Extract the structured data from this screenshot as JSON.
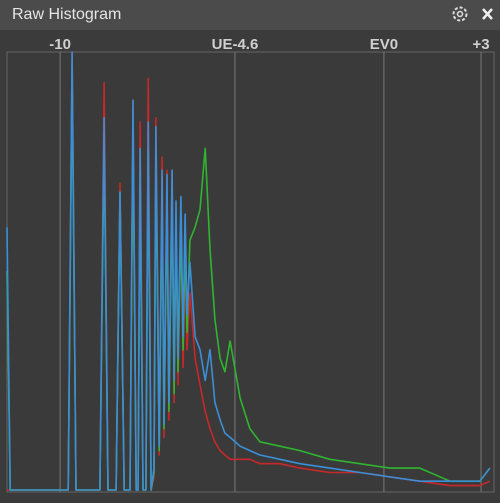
{
  "chart_data": {
    "type": "line",
    "title": "Raw Histogram",
    "x": [
      -11.64,
      -11.54,
      -9.75,
      -9.63,
      -9.51,
      -8.77,
      -8.64,
      -8.52,
      -8.27,
      -8.15,
      -8.02,
      -7.84,
      -7.75,
      -7.65,
      -7.59,
      -7.53,
      -7.44,
      -7.35,
      -7.28,
      -7.19,
      -7.1,
      -7.04,
      -6.94,
      -6.85,
      -6.79,
      -6.7,
      -6.64,
      -6.54,
      -6.48,
      -6.42,
      -6.36,
      -6.27,
      -6.2,
      -6.14,
      -6.08,
      -5.99,
      -5.83,
      -5.68,
      -5.52,
      -5.37,
      -5.22,
      -5.06,
      -4.91,
      -4.75,
      -4.44,
      -4.14,
      -3.83,
      -3.21,
      -2.59,
      -1.67,
      -0.74,
      0.19,
      1.11,
      2.04,
      2.96,
      3.27
    ],
    "series": [
      {
        "name": "Red",
        "color": "#c8282a",
        "values": [
          0,
          0,
          0,
          100,
          0,
          0,
          93,
          0,
          0,
          70,
          0,
          0,
          89,
          0,
          0,
          84,
          0,
          0,
          94,
          0,
          3,
          85,
          8,
          76,
          12,
          73,
          16,
          73,
          20,
          63,
          24,
          62,
          28,
          55,
          32,
          45,
          30,
          24,
          18,
          14,
          11,
          9,
          8,
          7,
          7,
          7,
          6,
          6,
          5,
          4,
          4,
          3,
          2,
          1,
          1,
          2
        ]
      },
      {
        "name": "Green",
        "color": "#2fb52f",
        "values": [
          50,
          0,
          0,
          95,
          0,
          0,
          80,
          0,
          0,
          68,
          0,
          0,
          82,
          0,
          0,
          72,
          0,
          0,
          78,
          0,
          4,
          76,
          9,
          68,
          14,
          66,
          18,
          66,
          22,
          60,
          27,
          60,
          32,
          57,
          36,
          57,
          60,
          64,
          78,
          55,
          39,
          30,
          27,
          34,
          21,
          14,
          11,
          10,
          9,
          7,
          6,
          5,
          5,
          2,
          2,
          5
        ]
      },
      {
        "name": "Blue",
        "color": "#3a8fd8",
        "values": [
          60,
          0,
          0,
          100,
          0,
          0,
          85,
          0,
          0,
          68,
          0,
          0,
          89,
          0,
          0,
          78,
          0,
          0,
          84,
          0,
          5,
          83,
          10,
          73,
          15,
          72,
          20,
          73,
          25,
          66,
          30,
          67,
          35,
          63,
          40,
          52,
          35,
          32,
          25,
          32,
          20,
          16,
          13,
          12,
          10,
          9,
          8,
          7,
          6,
          5,
          4,
          3,
          2,
          2,
          2,
          5
        ]
      }
    ],
    "xlim": [
      -11.64,
      3.4
    ],
    "xticks": [
      -10,
      {
        "value": -4.6,
        "label": "UE-4.6"
      },
      {
        "value": 0,
        "label": "EV0"
      },
      {
        "value": 3,
        "label": "+3"
      }
    ],
    "ylim": [
      0,
      100
    ],
    "grid": true
  }
}
